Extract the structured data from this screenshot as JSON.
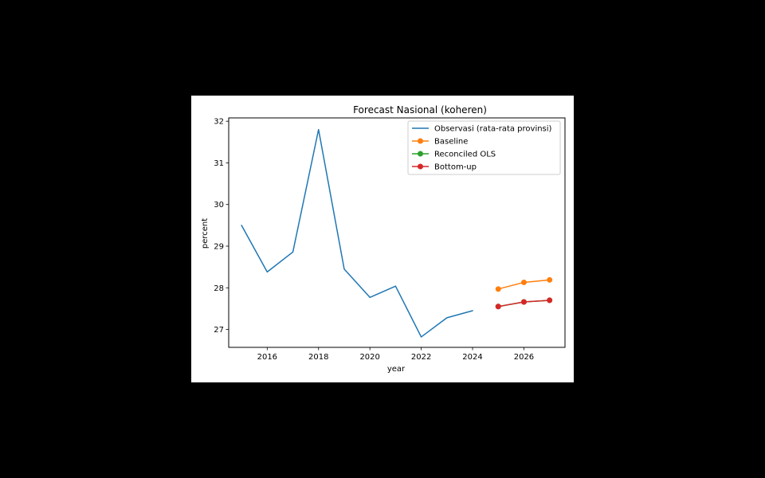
{
  "chart_data": {
    "type": "line",
    "title": "Forecast Nasional (koheren)",
    "xlabel": "year",
    "ylabel": "percent",
    "xlim": [
      2014.5,
      2027.6
    ],
    "ylim": [
      26.57,
      32.08
    ],
    "xticks": [
      2016,
      2018,
      2020,
      2022,
      2024,
      2026
    ],
    "yticks": [
      27,
      28,
      29,
      30,
      31,
      32
    ],
    "grid": false,
    "legend_position": "top-right",
    "series": [
      {
        "name": "Observasi (rata-rata provinsi)",
        "color": "#1f77b4",
        "marker": false,
        "x": [
          2015,
          2016,
          2017,
          2018,
          2019,
          2020,
          2021,
          2022,
          2023,
          2024
        ],
        "y": [
          29.5,
          28.38,
          28.86,
          31.8,
          28.45,
          27.77,
          28.04,
          26.82,
          27.28,
          27.45
        ]
      },
      {
        "name": "Baseline",
        "color": "#ff7f0e",
        "marker": true,
        "x": [
          2025,
          2026,
          2027
        ],
        "y": [
          27.97,
          28.13,
          28.19
        ]
      },
      {
        "name": "Reconciled OLS",
        "color": "#2ca02c",
        "marker": true,
        "x": [
          2025,
          2026,
          2027
        ],
        "y": [
          27.55,
          27.66,
          27.7
        ]
      },
      {
        "name": "Bottom-up",
        "color": "#d62728",
        "marker": true,
        "x": [
          2025,
          2026,
          2027
        ],
        "y": [
          27.55,
          27.66,
          27.7
        ]
      }
    ]
  }
}
